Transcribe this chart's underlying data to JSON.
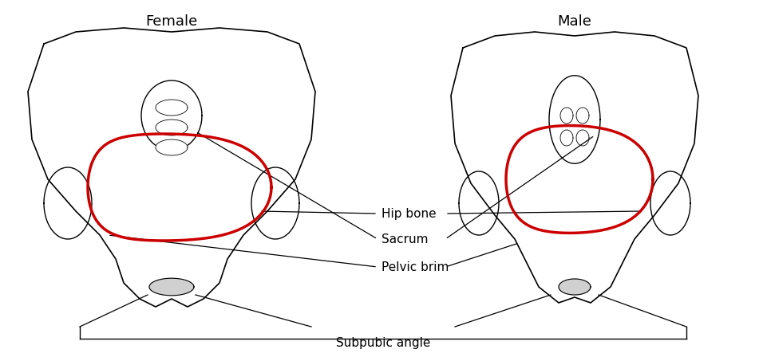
{
  "title_female": "Female",
  "title_male": "Male",
  "title_fontsize": 13,
  "label_fontsize": 11,
  "bg_color": "#ffffff",
  "text_color": "#000000",
  "red_color": "#cc0000",
  "annotation_color": "#000000",
  "labels": {
    "hip_bone": "Hip bone",
    "sacrum": "Sacrum",
    "pelvic_brim": "Pelvic brim",
    "subpubic_angle": "Subpubic angle"
  },
  "fig_width": 9.56,
  "fig_height": 4.48,
  "dpi": 100
}
